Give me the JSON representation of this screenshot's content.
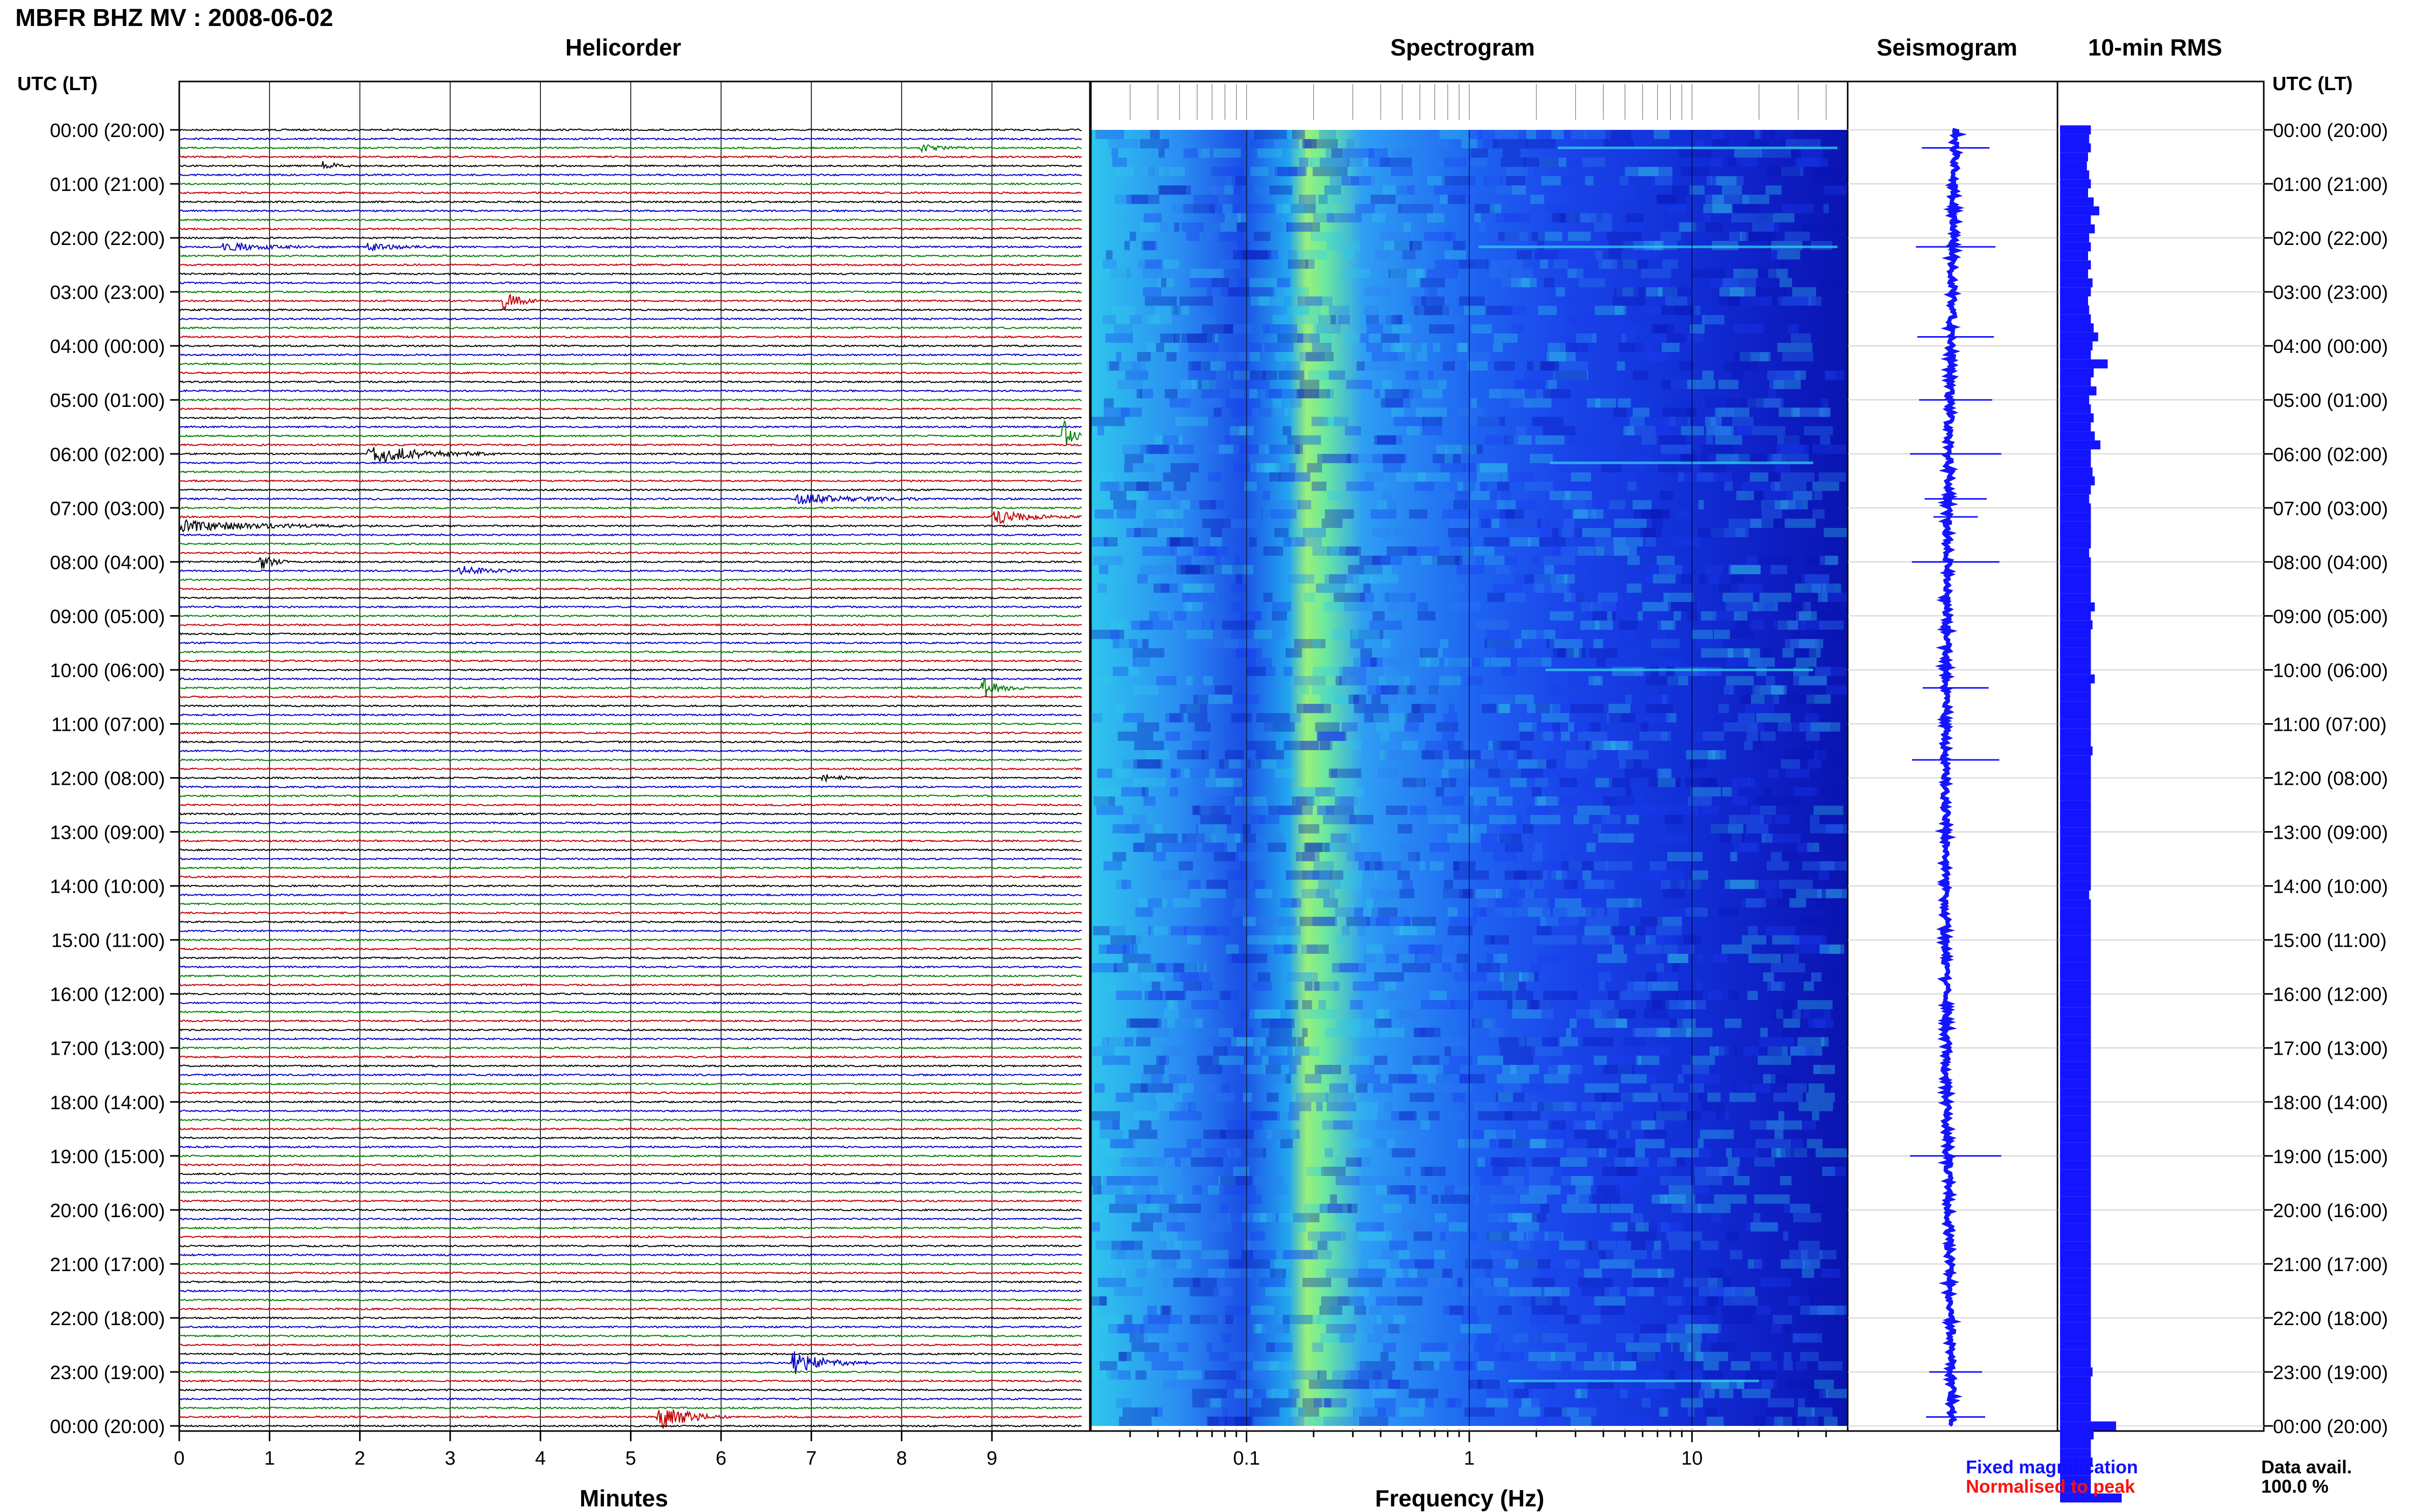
{
  "title": "MBFR BHZ MV : 2008-06-02",
  "panels": {
    "helicorder": "Helicorder",
    "spectrogram": "Spectrogram",
    "seismogram": "Seismogram",
    "rms": "10-min RMS"
  },
  "time_axis_label": "UTC (LT)",
  "time_ticks": [
    "00:00 (20:00)",
    "01:00 (21:00)",
    "02:00 (22:00)",
    "03:00 (23:00)",
    "04:00 (00:00)",
    "05:00 (01:00)",
    "06:00 (02:00)",
    "07:00 (03:00)",
    "08:00 (04:00)",
    "09:00 (05:00)",
    "10:00 (06:00)",
    "11:00 (07:00)",
    "12:00 (08:00)",
    "13:00 (09:00)",
    "14:00 (10:00)",
    "15:00 (11:00)",
    "16:00 (12:00)",
    "17:00 (13:00)",
    "18:00 (14:00)",
    "19:00 (15:00)",
    "20:00 (16:00)",
    "21:00 (17:00)",
    "22:00 (18:00)",
    "23:00 (19:00)",
    "00:00 (20:00)"
  ],
  "legend": {
    "fixed": "Fixed magnification",
    "normalised": "Normalised to peak",
    "fixed_color": "#1010ff",
    "normalised_color": "#ff1010"
  },
  "data_avail": {
    "label": "Data avail.",
    "value": "100.0 %"
  },
  "chart_data": [
    {
      "type": "line",
      "title": "Helicorder",
      "xlabel": "Minutes",
      "x_ticks": [
        "0",
        "1",
        "2",
        "3",
        "4",
        "5",
        "6",
        "7",
        "8",
        "9"
      ],
      "xlim": [
        0,
        10
      ],
      "trace_colors": [
        "#000000",
        "#0000c0",
        "#008000",
        "#c00000"
      ],
      "traces_per_hour": 6,
      "events": [
        {
          "time": "00:20",
          "minute": 8.2,
          "amp": 0.5,
          "len": 0.6
        },
        {
          "time": "00:40",
          "minute": 1.6,
          "amp": 0.6,
          "len": 0.4
        },
        {
          "time": "02:10",
          "minute": 0.5,
          "amp": 0.6,
          "len": 1.2
        },
        {
          "time": "02:10",
          "minute": 2.1,
          "amp": 0.5,
          "len": 0.8
        },
        {
          "time": "03:10",
          "minute": 3.6,
          "amp": 1.2,
          "len": 0.5
        },
        {
          "time": "05:40",
          "minute": 9.8,
          "amp": 2.0,
          "len": 0.3
        },
        {
          "time": "06:00",
          "minute": 2.1,
          "amp": 1.4,
          "len": 1.5
        },
        {
          "time": "06:50",
          "minute": 6.8,
          "amp": 0.8,
          "len": 1.5
        },
        {
          "time": "07:10",
          "minute": 9.0,
          "amp": 1.0,
          "len": 1.0
        },
        {
          "time": "07:20",
          "minute": 0.0,
          "amp": 0.8,
          "len": 2.2
        },
        {
          "time": "08:00",
          "minute": 0.9,
          "amp": 1.5,
          "len": 0.3
        },
        {
          "time": "08:10",
          "minute": 3.1,
          "amp": 0.8,
          "len": 0.7
        },
        {
          "time": "10:20",
          "minute": 8.9,
          "amp": 1.4,
          "len": 0.5
        },
        {
          "time": "12:00",
          "minute": 7.1,
          "amp": 0.6,
          "len": 0.5
        },
        {
          "time": "22:50",
          "minute": 6.8,
          "amp": 1.6,
          "len": 0.9
        },
        {
          "time": "23:50",
          "minute": 5.3,
          "amp": 2.0,
          "len": 0.8
        }
      ]
    },
    {
      "type": "heatmap",
      "title": "Spectrogram",
      "xlabel": "Frequency (Hz)",
      "x_scale": "log",
      "xlim": [
        0.02,
        50
      ],
      "x_ticks": [
        "0.1",
        "1",
        "10"
      ],
      "x_tick_values": [
        0.1,
        1,
        10
      ],
      "dominant_band_hz": [
        0.2,
        0.3
      ],
      "colormap": [
        "#0a14b4",
        "#1a3cf0",
        "#2a7af0",
        "#30c8ec",
        "#9cf07a",
        "#e6f060"
      ]
    },
    {
      "type": "line",
      "title": "Seismogram",
      "spike_times": [
        "00:20",
        "02:10",
        "03:50",
        "05:00",
        "06:00",
        "06:50",
        "07:10",
        "08:00",
        "10:20",
        "11:40",
        "19:00",
        "23:00",
        "23:50"
      ]
    },
    {
      "type": "bar",
      "title": "10-min RMS",
      "interval_minutes": 10,
      "values": [
        0.55,
        0.52,
        0.55,
        0.5,
        0.48,
        0.52,
        0.55,
        0.5,
        0.6,
        0.7,
        0.55,
        0.62,
        0.52,
        0.55,
        0.5,
        0.55,
        0.5,
        0.58,
        0.55,
        0.5,
        0.52,
        0.55,
        0.6,
        0.68,
        0.58,
        0.55,
        0.85,
        0.6,
        0.55,
        0.65,
        0.52,
        0.55,
        0.6,
        0.55,
        0.62,
        0.72,
        0.55,
        0.55,
        0.58,
        0.62,
        0.55,
        0.52,
        0.55,
        0.55,
        0.55,
        0.55,
        0.55,
        0.52,
        0.55,
        0.55,
        0.55,
        0.55,
        0.55,
        0.62,
        0.55,
        0.58,
        0.55,
        0.55,
        0.55,
        0.55,
        0.55,
        0.62,
        0.55,
        0.55,
        0.55,
        0.55,
        0.55,
        0.55,
        0.55,
        0.58,
        0.55,
        0.55,
        0.55,
        0.55,
        0.55,
        0.55,
        0.55,
        0.55,
        0.55,
        0.55,
        0.55,
        0.55,
        0.55,
        0.55,
        0.55,
        0.52,
        0.55,
        0.55,
        0.55,
        0.55,
        0.55,
        0.55,
        0.55,
        0.55,
        0.55,
        0.55,
        0.55,
        0.55,
        0.55,
        0.55,
        0.55,
        0.55,
        0.55,
        0.55,
        0.55,
        0.55,
        0.55,
        0.55,
        0.55,
        0.55,
        0.55,
        0.55,
        0.55,
        0.55,
        0.55,
        0.55,
        0.55,
        0.55,
        0.55,
        0.55,
        0.55,
        0.55,
        0.55,
        0.55,
        0.55,
        0.55,
        0.55,
        0.55,
        0.55,
        0.55,
        0.55,
        0.55,
        0.55,
        0.55,
        0.55,
        0.55,
        0.55,
        0.55,
        0.58,
        0.55,
        0.55,
        0.55,
        0.55,
        0.55,
        1.0,
        0.6,
        0.55,
        0.55,
        0.58,
        0.55,
        0.55,
        0.55,
        1.1
      ]
    }
  ]
}
